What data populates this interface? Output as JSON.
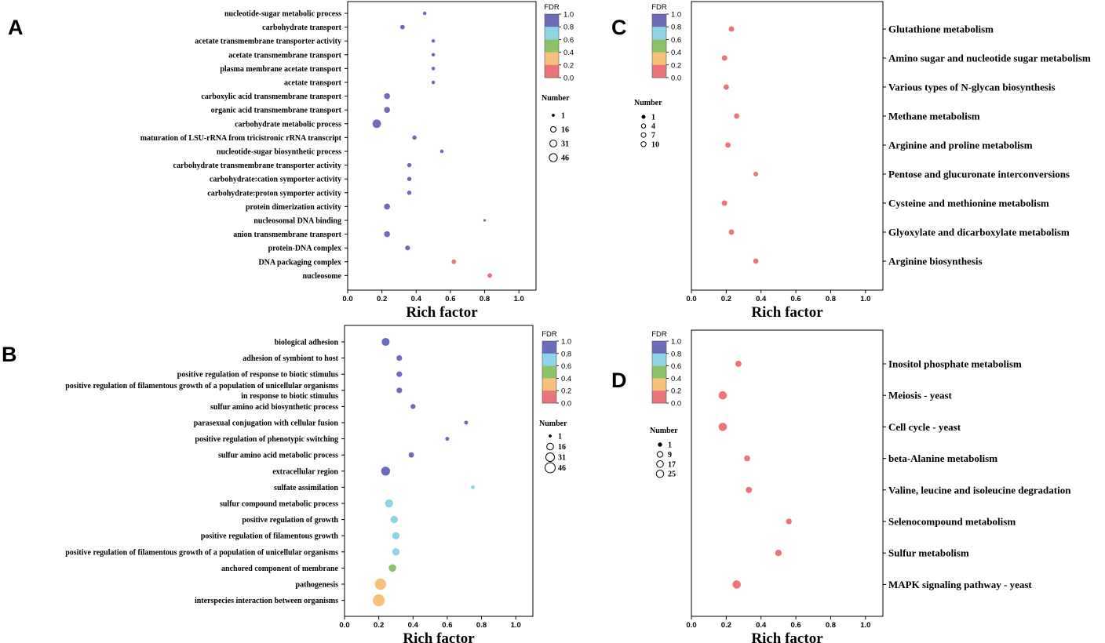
{
  "colors": {
    "fdr_scale": [
      "#e9747a",
      "#f7c07c",
      "#8cc36a",
      "#8fd4e6",
      "#6c6cba"
    ],
    "axis": "#000000",
    "legend_circle_stroke": "#000000"
  },
  "common": {
    "xlabel": "Rich factor",
    "fdr_title": "FDR",
    "fdr_ticks": [
      "0.0",
      "0.2",
      "0.4",
      "0.6",
      "0.8",
      "1.0"
    ],
    "number_title": "Number",
    "xticks": [
      "0.0",
      "0.2",
      "0.4",
      "0.6",
      "0.8",
      "1.0"
    ]
  },
  "panels": [
    {
      "letter": "A",
      "layout_key": "A"
    },
    {
      "letter": "B",
      "layout_key": "B"
    },
    {
      "letter": "C",
      "layout_key": "C"
    },
    {
      "letter": "D",
      "layout_key": "D"
    }
  ],
  "chart_data": [
    {
      "panel": "A",
      "type": "scatter",
      "xlabel": "Rich factor",
      "xlim": [
        0,
        1.1
      ],
      "colorbar": {
        "label": "FDR",
        "range": [
          0,
          1
        ]
      },
      "size_legend": {
        "title": "Number",
        "values": [
          1,
          16,
          31,
          46
        ]
      },
      "points": [
        {
          "term": "nucleotide-sugar metabolic process",
          "rich": 0.45,
          "fdr": 1.0,
          "count": 2
        },
        {
          "term": "carbohydrate transport",
          "rich": 0.32,
          "fdr": 1.0,
          "count": 5
        },
        {
          "term": "acetate transmembrane transporter activity",
          "rich": 0.5,
          "fdr": 1.0,
          "count": 2
        },
        {
          "term": "acetate transmembrane transport",
          "rich": 0.5,
          "fdr": 1.0,
          "count": 2
        },
        {
          "term": "plasma membrane acetate transport",
          "rich": 0.5,
          "fdr": 1.0,
          "count": 2
        },
        {
          "term": "acetate transport",
          "rich": 0.5,
          "fdr": 1.0,
          "count": 2
        },
        {
          "term": "carboxylic acid transmembrane transport",
          "rich": 0.23,
          "fdr": 1.0,
          "count": 12
        },
        {
          "term": "organic acid transmembrane transport",
          "rich": 0.23,
          "fdr": 1.0,
          "count": 12
        },
        {
          "term": "carbohydrate metabolic process",
          "rich": 0.17,
          "fdr": 1.0,
          "count": 35
        },
        {
          "term": "maturation of LSU-rRNA from tricistronic rRNA transcript",
          "rich": 0.39,
          "fdr": 1.0,
          "count": 4
        },
        {
          "term": "nucleotide-sugar biosynthetic process",
          "rich": 0.55,
          "fdr": 1.0,
          "count": 2
        },
        {
          "term": "carbohydrate transmembrane transporter activity",
          "rich": 0.36,
          "fdr": 1.0,
          "count": 4
        },
        {
          "term": "carbohydrate:cation symporter activity",
          "rich": 0.36,
          "fdr": 1.0,
          "count": 4
        },
        {
          "term": "carbohydrate:proton symporter activity",
          "rich": 0.36,
          "fdr": 1.0,
          "count": 4
        },
        {
          "term": "protein dimerization activity",
          "rich": 0.23,
          "fdr": 1.0,
          "count": 12
        },
        {
          "term": "nucleosomal DNA binding",
          "rich": 0.8,
          "fdr": 1.0,
          "count": 1
        },
        {
          "term": "anion transmembrane transport",
          "rich": 0.23,
          "fdr": 1.0,
          "count": 12
        },
        {
          "term": "protein-DNA complex",
          "rich": 0.35,
          "fdr": 1.0,
          "count": 6
        },
        {
          "term": "DNA packaging complex",
          "rich": 0.62,
          "fdr": 0.05,
          "count": 5
        },
        {
          "term": "nucleosome",
          "rich": 0.83,
          "fdr": 0.05,
          "count": 5
        }
      ]
    },
    {
      "panel": "B",
      "type": "scatter",
      "xlabel": "Rich factor",
      "xlim": [
        0,
        1.1
      ],
      "colorbar": {
        "label": "FDR",
        "range": [
          0,
          1
        ]
      },
      "size_legend": {
        "title": "Number",
        "values": [
          1,
          16,
          31,
          46
        ]
      },
      "points": [
        {
          "term": "biological adhesion",
          "rich": 0.24,
          "fdr": 1.0,
          "count": 16
        },
        {
          "term": "adhesion of symbiont to host",
          "rich": 0.32,
          "fdr": 1.0,
          "count": 6
        },
        {
          "term": "positive regulation of response to biotic stimulus",
          "rich": 0.32,
          "fdr": 1.0,
          "count": 6
        },
        {
          "term": "positive regulation of filamentous growth of a population of unicellular organisms\nin response to biotic stimulus",
          "rich": 0.32,
          "fdr": 1.0,
          "count": 6
        },
        {
          "term": "sulfur amino acid biosynthetic process",
          "rich": 0.4,
          "fdr": 1.0,
          "count": 4
        },
        {
          "term": "parasexual conjugation with cellular fusion",
          "rich": 0.71,
          "fdr": 1.0,
          "count": 2
        },
        {
          "term": "positive regulation of phenotypic switching",
          "rich": 0.6,
          "fdr": 1.0,
          "count": 2
        },
        {
          "term": "sulfur amino acid metabolic process",
          "rich": 0.39,
          "fdr": 1.0,
          "count": 5
        },
        {
          "term": "extracellular region",
          "rich": 0.24,
          "fdr": 1.0,
          "count": 22
        },
        {
          "term": "sulfate assimilation",
          "rich": 0.75,
          "fdr": 0.7,
          "count": 2
        },
        {
          "term": "sulfur compound metabolic process",
          "rich": 0.26,
          "fdr": 0.7,
          "count": 17
        },
        {
          "term": "positive regulation of growth",
          "rich": 0.29,
          "fdr": 0.7,
          "count": 13
        },
        {
          "term": "positive regulation of filamentous growth",
          "rich": 0.3,
          "fdr": 0.7,
          "count": 13
        },
        {
          "term": "positive regulation of filamentous growth of a population of unicellular organisms",
          "rich": 0.3,
          "fdr": 0.7,
          "count": 13
        },
        {
          "term": "anchored component of membrane",
          "rich": 0.28,
          "fdr": 0.45,
          "count": 14
        },
        {
          "term": "pathogenesis",
          "rich": 0.21,
          "fdr": 0.25,
          "count": 40
        },
        {
          "term": "interspecies interaction between organisms",
          "rich": 0.2,
          "fdr": 0.25,
          "count": 46
        }
      ]
    },
    {
      "panel": "C",
      "type": "scatter",
      "xlabel": "Rich factor",
      "xlim": [
        0,
        1.1
      ],
      "colorbar": {
        "label": "FDR",
        "range": [
          0,
          1
        ]
      },
      "size_legend": {
        "title": "Number",
        "values": [
          1,
          4,
          7,
          10
        ]
      },
      "points": [
        {
          "term": "Glutathione metabolism",
          "rich": 0.23,
          "fdr": 0.05,
          "count": 6
        },
        {
          "term": "Amino sugar and nucleotide sugar metabolism",
          "rich": 0.19,
          "fdr": 0.05,
          "count": 6
        },
        {
          "term": "Various types of N-glycan biosynthesis",
          "rich": 0.2,
          "fdr": 0.05,
          "count": 6
        },
        {
          "term": "Methane metabolism",
          "rich": 0.26,
          "fdr": 0.05,
          "count": 6
        },
        {
          "term": "Arginine and proline metabolism",
          "rich": 0.21,
          "fdr": 0.05,
          "count": 6
        },
        {
          "term": "Pentose and glucuronate interconversions",
          "rich": 0.37,
          "fdr": 0.05,
          "count": 3
        },
        {
          "term": "Cysteine and methionine metabolism",
          "rich": 0.19,
          "fdr": 0.05,
          "count": 7
        },
        {
          "term": "Glyoxylate and dicarboxylate metabolism",
          "rich": 0.23,
          "fdr": 0.05,
          "count": 6
        },
        {
          "term": "Arginine biosynthesis",
          "rich": 0.37,
          "fdr": 0.05,
          "count": 5
        }
      ]
    },
    {
      "panel": "D",
      "type": "scatter",
      "xlabel": "Rich factor",
      "xlim": [
        0,
        1.1
      ],
      "colorbar": {
        "label": "FDR",
        "range": [
          0,
          1
        ]
      },
      "size_legend": {
        "title": "Number",
        "values": [
          1,
          9,
          17,
          25
        ]
      },
      "points": [
        {
          "term": "Inositol phosphate metabolism",
          "rich": 0.27,
          "fdr": 0.05,
          "count": 6
        },
        {
          "term": "Meiosis - yeast",
          "rich": 0.18,
          "fdr": 0.05,
          "count": 20
        },
        {
          "term": "Cell cycle - yeast",
          "rich": 0.18,
          "fdr": 0.05,
          "count": 20
        },
        {
          "term": "beta-Alanine metabolism",
          "rich": 0.32,
          "fdr": 0.05,
          "count": 5
        },
        {
          "term": "Valine, leucine and isoleucine degradation",
          "rich": 0.33,
          "fdr": 0.05,
          "count": 6
        },
        {
          "term": "Selenocompound metabolism",
          "rich": 0.56,
          "fdr": 0.05,
          "count": 4
        },
        {
          "term": "Sulfur metabolism",
          "rich": 0.5,
          "fdr": 0.05,
          "count": 7
        },
        {
          "term": "MAPK signaling pathway - yeast",
          "rich": 0.26,
          "fdr": 0.05,
          "count": 20
        }
      ]
    }
  ]
}
